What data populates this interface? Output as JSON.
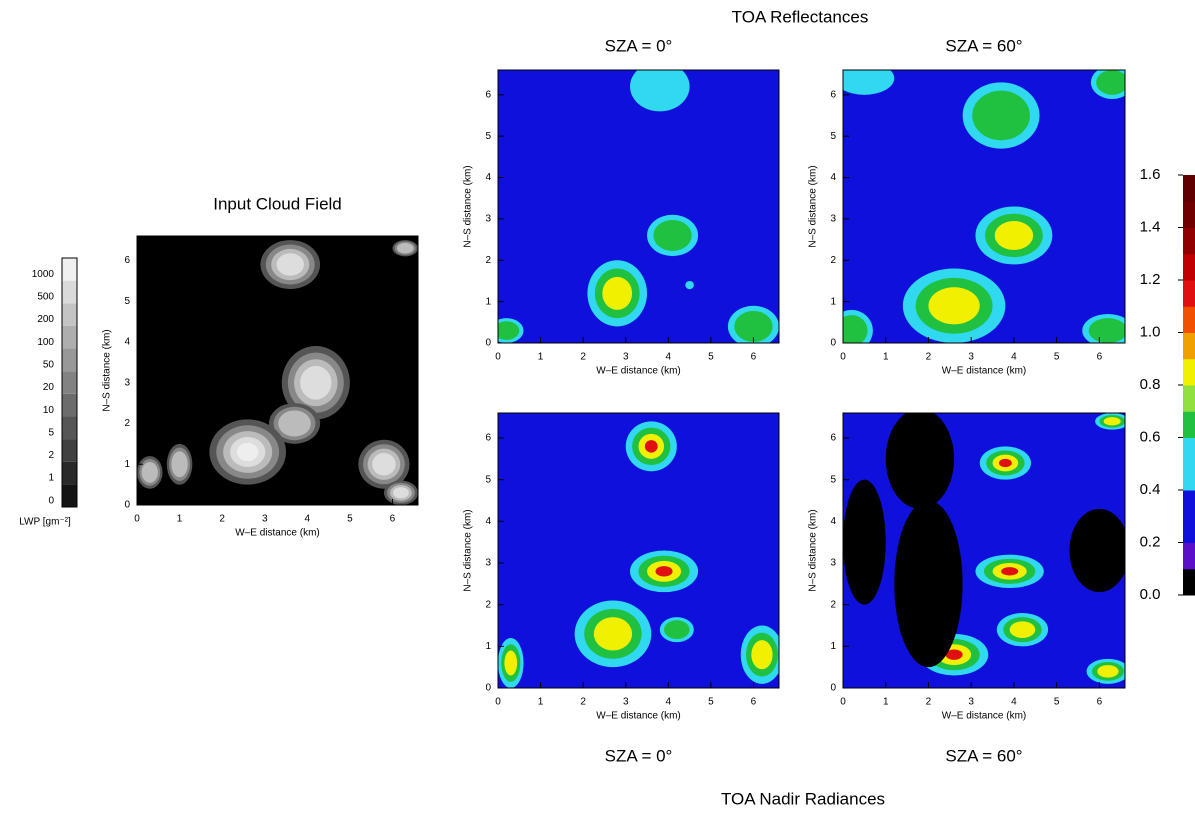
{
  "figure_title_top": "TOA Reflectances",
  "figure_title_bottom": "TOA Nadir Radiances",
  "chart_data": [
    {
      "type": "heatmap",
      "title": "Input Cloud Field",
      "xlabel": "W–E distance (km)",
      "ylabel": "N–S distance (km)",
      "xlim": [
        0,
        6.6
      ],
      "ylim": [
        0,
        6.6
      ],
      "xticks": [
        0,
        1,
        2,
        3,
        4,
        5,
        6
      ],
      "yticks": [
        0,
        1,
        2,
        3,
        4,
        5,
        6
      ],
      "background": "#000000"
    },
    {
      "type": "heatmap",
      "title": "SZA = 0°",
      "xlabel": "W–E distance (km)",
      "ylabel": "N–S distance (km)",
      "xlim": [
        0,
        6.6
      ],
      "ylim": [
        0,
        6.6
      ],
      "xticks": [
        0,
        1,
        2,
        3,
        4,
        5,
        6
      ],
      "yticks": [
        0,
        1,
        2,
        3,
        4,
        5,
        6
      ],
      "background": "#1010dc"
    },
    {
      "type": "heatmap",
      "title": "SZA = 60°",
      "xlabel": "W–E distance (km)",
      "ylabel": "N–S distance (km)",
      "xlim": [
        0,
        6.6
      ],
      "ylim": [
        0,
        6.6
      ],
      "xticks": [
        0,
        1,
        2,
        3,
        4,
        5,
        6
      ],
      "yticks": [
        0,
        1,
        2,
        3,
        4,
        5,
        6
      ],
      "background": "#1010dc"
    },
    {
      "type": "heatmap",
      "title": "SZA = 0°",
      "xlabel": "W–E distance (km)",
      "ylabel": "N–S distance (km)",
      "xlim": [
        0,
        6.6
      ],
      "ylim": [
        0,
        6.6
      ],
      "xticks": [
        0,
        1,
        2,
        3,
        4,
        5,
        6
      ],
      "yticks": [
        0,
        1,
        2,
        3,
        4,
        5,
        6
      ],
      "background": "#1010dc"
    },
    {
      "type": "heatmap",
      "title": "SZA = 60°",
      "xlabel": "W–E distance (km)",
      "ylabel": "N–S distance (km)",
      "xlim": [
        0,
        6.6
      ],
      "ylim": [
        0,
        6.6
      ],
      "xticks": [
        0,
        1,
        2,
        3,
        4,
        5,
        6
      ],
      "yticks": [
        0,
        1,
        2,
        3,
        4,
        5,
        6
      ],
      "background": "#1010dc"
    }
  ],
  "gray_colorbar": {
    "label": "LWP [gm⁻²]",
    "levels": [
      0,
      1,
      2,
      5,
      10,
      20,
      50,
      100,
      200,
      500,
      1000
    ]
  },
  "color_colorbar": {
    "ylim": [
      0,
      1.6
    ],
    "yticks": [
      {
        "value": 0,
        "label": "0.0"
      },
      {
        "value": 0.2,
        "label": "0.2"
      },
      {
        "value": 0.4,
        "label": "0.4"
      },
      {
        "value": 0.6,
        "label": "0.6"
      },
      {
        "value": 0.8,
        "label": "0.8"
      },
      {
        "value": 1.0,
        "label": "1.0"
      },
      1.2,
      1.4,
      1.6
    ],
    "colors": [
      "#000000",
      "#5a10c8",
      "#1010dc",
      "#1010dc",
      "#30d8f0",
      "#30d8f0",
      "#20c040",
      "#90e040",
      "#f0f000",
      "#f0a000",
      "#f05000",
      "#e01010",
      "#c00000",
      "#900000",
      "#700000",
      "#600000"
    ]
  }
}
